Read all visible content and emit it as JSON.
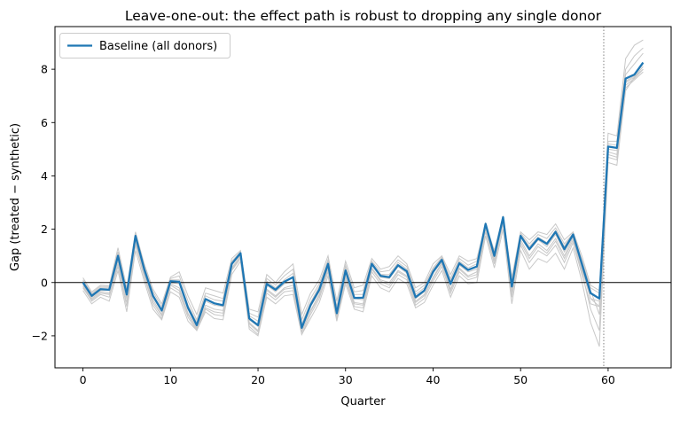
{
  "chart_data": {
    "type": "line",
    "title": "Leave-one-out: the effect path is robust to dropping any single donor",
    "xlabel": "Quarter",
    "ylabel": "Gap (treated − synthetic)",
    "xlim": [
      -3.2,
      67.2
    ],
    "ylim": [
      -3.2,
      9.6
    ],
    "xticks": [
      0,
      10,
      20,
      30,
      40,
      50,
      60
    ],
    "yticks": [
      -2,
      0,
      2,
      4,
      6,
      8
    ],
    "ytick_labels": [
      "−2",
      "0",
      "2",
      "4",
      "6",
      "8"
    ],
    "grid": false,
    "zero_line": 0,
    "treatment_line_x": 59.5,
    "legend": {
      "position": "top-left",
      "entries": [
        "Baseline (all donors)"
      ]
    },
    "colors": {
      "baseline": "#1f77b4",
      "loo": "#c8c8c8",
      "zero_line": "#000000",
      "treatment_line": "#808080"
    },
    "x": [
      0,
      1,
      2,
      3,
      4,
      5,
      6,
      7,
      8,
      9,
      10,
      11,
      12,
      13,
      14,
      15,
      16,
      17,
      18,
      19,
      20,
      21,
      22,
      23,
      24,
      25,
      26,
      27,
      28,
      29,
      30,
      31,
      32,
      33,
      34,
      35,
      36,
      37,
      38,
      39,
      40,
      41,
      42,
      43,
      44,
      45,
      46,
      47,
      48,
      49,
      50,
      51,
      52,
      53,
      54,
      55,
      56,
      57,
      58,
      59,
      60,
      61,
      62,
      63,
      64
    ],
    "series": [
      {
        "name": "Baseline (all donors)",
        "role": "baseline",
        "values": [
          0.0,
          -0.5,
          -0.25,
          -0.27,
          1.0,
          -0.45,
          1.75,
          0.5,
          -0.5,
          -1.05,
          0.05,
          0.03,
          -0.95,
          -1.6,
          -0.62,
          -0.78,
          -0.85,
          0.7,
          1.1,
          -1.35,
          -1.6,
          -0.05,
          -0.27,
          0.03,
          0.2,
          -1.7,
          -0.85,
          -0.27,
          0.7,
          -1.15,
          0.45,
          -0.58,
          -0.57,
          0.7,
          0.25,
          0.2,
          0.65,
          0.42,
          -0.55,
          -0.3,
          0.4,
          0.85,
          -0.05,
          0.72,
          0.47,
          0.6,
          2.2,
          1.0,
          2.45,
          -0.15,
          1.75,
          1.25,
          1.65,
          1.45,
          1.9,
          1.25,
          1.8,
          0.7,
          -0.4,
          -0.6,
          5.1,
          5.05,
          7.65,
          7.8,
          8.25
        ]
      },
      {
        "role": "leave-one-out",
        "values": [
          0.18,
          -0.35,
          -0.1,
          -0.12,
          1.3,
          -0.2,
          1.9,
          0.7,
          -0.25,
          -0.8,
          0.2,
          0.4,
          -0.5,
          -1.2,
          -0.2,
          -0.3,
          -0.4,
          0.9,
          1.2,
          -1.0,
          -1.1,
          0.3,
          0.0,
          0.4,
          0.7,
          -1.2,
          -0.4,
          0.1,
          1.0,
          -0.7,
          0.8,
          -0.2,
          -0.1,
          0.9,
          0.5,
          0.6,
          1.0,
          0.7,
          -0.2,
          0.0,
          0.7,
          1.0,
          0.3,
          1.0,
          0.8,
          0.9,
          2.2,
          1.2,
          2.5,
          0.2,
          1.9,
          1.6,
          1.9,
          1.8,
          2.2,
          1.6,
          1.9,
          1.0,
          -0.1,
          -0.3,
          5.6,
          5.5,
          8.4,
          8.9,
          9.1
        ]
      },
      {
        "role": "leave-one-out",
        "values": [
          0.1,
          -0.4,
          -0.15,
          -0.15,
          1.15,
          -0.3,
          1.85,
          0.6,
          -0.35,
          -0.9,
          0.15,
          0.25,
          -0.7,
          -1.4,
          -0.4,
          -0.5,
          -0.6,
          0.8,
          1.15,
          -1.15,
          -1.3,
          0.15,
          -0.1,
          0.25,
          0.5,
          -1.4,
          -0.6,
          -0.05,
          0.85,
          -0.9,
          0.65,
          -0.35,
          -0.3,
          0.8,
          0.4,
          0.45,
          0.85,
          0.6,
          -0.35,
          -0.1,
          0.55,
          0.95,
          0.15,
          0.9,
          0.65,
          0.8,
          2.2,
          1.1,
          2.5,
          0.05,
          1.85,
          1.45,
          1.8,
          1.65,
          2.05,
          1.45,
          1.85,
          0.85,
          -0.2,
          -0.4,
          5.3,
          5.3,
          8.0,
          8.5,
          8.8
        ]
      },
      {
        "role": "leave-one-out",
        "values": [
          -0.1,
          -0.6,
          -0.35,
          -0.4,
          0.8,
          -0.6,
          1.6,
          0.35,
          -0.65,
          -1.2,
          -0.05,
          -0.2,
          -1.15,
          -1.7,
          -0.85,
          -1.0,
          -1.05,
          0.55,
          1.0,
          -1.5,
          -1.8,
          -0.25,
          -0.5,
          -0.2,
          -0.1,
          -1.85,
          -1.05,
          -0.45,
          0.55,
          -1.3,
          0.25,
          -0.75,
          -0.8,
          0.55,
          0.1,
          0.0,
          0.45,
          0.25,
          -0.7,
          -0.45,
          0.2,
          0.75,
          -0.25,
          0.55,
          0.25,
          0.4,
          2.1,
          0.85,
          2.35,
          -0.35,
          1.6,
          1.0,
          1.45,
          1.2,
          1.65,
          1.0,
          1.7,
          0.5,
          -0.6,
          -0.7,
          4.9,
          4.8,
          7.5,
          7.7,
          8.0
        ]
      },
      {
        "role": "leave-one-out",
        "values": [
          -0.2,
          -0.7,
          -0.45,
          -0.55,
          0.6,
          -0.9,
          1.4,
          0.2,
          -0.85,
          -1.35,
          -0.2,
          -0.4,
          -1.3,
          -1.8,
          -1.0,
          -1.2,
          -1.25,
          0.45,
          0.9,
          -1.65,
          -1.95,
          -0.4,
          -0.65,
          -0.35,
          -0.3,
          -1.95,
          -1.2,
          -0.6,
          0.4,
          -1.4,
          0.1,
          -0.9,
          -0.95,
          0.4,
          -0.05,
          -0.2,
          0.3,
          0.1,
          -0.85,
          -0.6,
          0.05,
          0.6,
          -0.4,
          0.4,
          0.1,
          0.2,
          1.9,
          0.7,
          2.2,
          -0.55,
          1.4,
          0.75,
          1.2,
          1.0,
          1.4,
          0.75,
          1.5,
          0.3,
          -0.8,
          -0.9,
          4.7,
          4.6,
          7.3,
          7.6,
          7.9
        ]
      },
      {
        "role": "leave-one-out",
        "values": [
          -0.3,
          -0.8,
          -0.55,
          -0.7,
          0.45,
          -1.1,
          1.2,
          0.05,
          -1.0,
          -1.4,
          -0.35,
          -0.55,
          -1.45,
          -1.8,
          -1.1,
          -1.35,
          -1.4,
          0.3,
          0.8,
          -1.75,
          -2.0,
          -0.55,
          -0.8,
          -0.5,
          -0.45,
          -1.95,
          -1.35,
          -0.75,
          0.25,
          -1.45,
          -0.05,
          -1.0,
          -1.1,
          0.25,
          -0.2,
          -0.35,
          0.15,
          -0.05,
          -0.95,
          -0.75,
          -0.1,
          0.45,
          -0.55,
          0.25,
          -0.05,
          0.0,
          1.75,
          0.55,
          2.0,
          -0.8,
          1.2,
          0.5,
          0.9,
          0.75,
          1.1,
          0.5,
          1.3,
          0.05,
          -1.5,
          -2.4,
          4.5,
          4.4,
          7.2,
          7.7,
          8.1
        ]
      },
      {
        "role": "leave-one-out",
        "values": [
          -0.05,
          -0.55,
          -0.3,
          -0.3,
          0.9,
          -0.5,
          1.7,
          0.45,
          -0.55,
          -1.1,
          0.0,
          -0.05,
          -1.0,
          -1.65,
          -0.7,
          -0.85,
          -0.9,
          0.65,
          1.05,
          -1.4,
          -1.65,
          -0.1,
          -0.35,
          -0.05,
          0.05,
          -1.75,
          -0.9,
          -0.35,
          0.65,
          -1.2,
          0.4,
          -0.6,
          -0.65,
          0.65,
          0.2,
          0.15,
          0.6,
          0.35,
          -0.6,
          -0.35,
          0.35,
          0.8,
          -0.1,
          0.65,
          0.4,
          0.5,
          2.15,
          0.95,
          2.4,
          -0.2,
          1.7,
          1.2,
          1.6,
          1.35,
          1.8,
          1.15,
          1.75,
          0.6,
          -0.6,
          -0.9,
          5.0,
          4.95,
          7.55,
          7.75,
          8.2
        ]
      },
      {
        "role": "leave-one-out",
        "values": [
          0.05,
          -0.45,
          -0.2,
          -0.2,
          1.1,
          -0.35,
          1.8,
          0.55,
          -0.45,
          -1.0,
          0.1,
          0.1,
          -0.85,
          -1.5,
          -0.5,
          -0.65,
          -0.7,
          0.75,
          1.1,
          -1.25,
          -1.45,
          0.05,
          -0.2,
          0.1,
          0.35,
          -1.55,
          -0.75,
          -0.15,
          0.75,
          -1.05,
          0.55,
          -0.45,
          -0.45,
          0.75,
          0.3,
          0.3,
          0.75,
          0.5,
          -0.45,
          -0.2,
          0.5,
          0.9,
          0.05,
          0.8,
          0.55,
          0.7,
          2.25,
          1.05,
          2.45,
          -0.05,
          1.8,
          1.35,
          1.7,
          1.5,
          1.95,
          1.35,
          1.85,
          0.8,
          -0.3,
          -1.2,
          5.2,
          5.15,
          7.8,
          8.2,
          8.6
        ]
      },
      {
        "role": "leave-one-out",
        "values": [
          -0.15,
          -0.65,
          -0.4,
          -0.45,
          0.7,
          -0.75,
          1.5,
          0.25,
          -0.75,
          -1.25,
          -0.1,
          -0.3,
          -1.2,
          -1.75,
          -0.95,
          -1.1,
          -1.15,
          0.5,
          0.95,
          -1.55,
          -1.85,
          -0.3,
          -0.55,
          -0.25,
          -0.2,
          -1.85,
          -1.1,
          -0.5,
          0.5,
          -1.35,
          0.2,
          -0.8,
          -0.85,
          0.5,
          0.05,
          -0.1,
          0.4,
          0.2,
          -0.75,
          -0.5,
          0.15,
          0.7,
          -0.3,
          0.5,
          0.2,
          0.3,
          2.0,
          0.8,
          2.3,
          -0.45,
          1.5,
          0.9,
          1.35,
          1.1,
          1.55,
          0.9,
          1.6,
          0.4,
          -1.0,
          -1.8,
          4.8,
          4.7,
          7.4,
          7.65,
          8.0
        ]
      }
    ]
  }
}
